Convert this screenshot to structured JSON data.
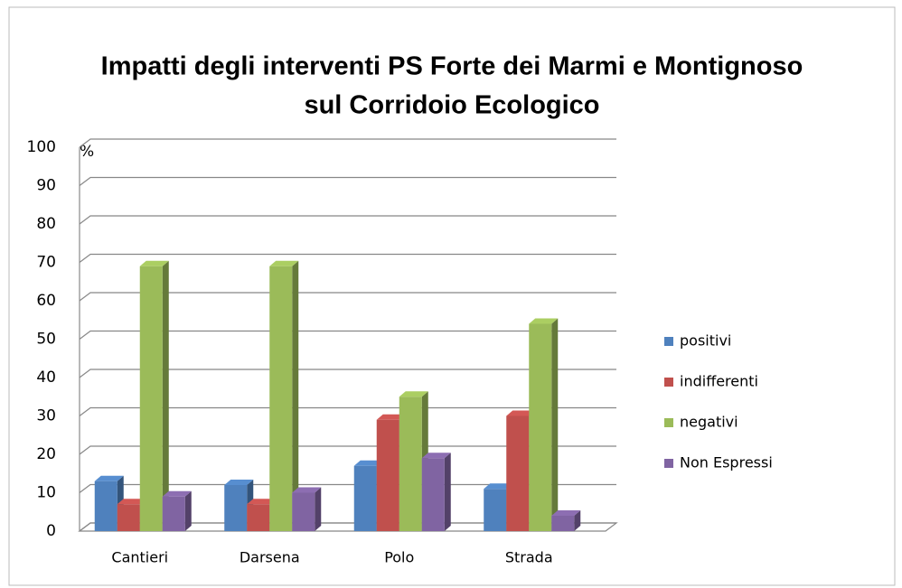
{
  "chart_data": {
    "type": "bar3d",
    "title": [
      "Impatti degli interventi PS Forte dei Marmi e Montignoso",
      "sul Corridoio Ecologico"
    ],
    "y_label": "%",
    "categories": [
      "Cantieri",
      "Darsena",
      "Polo",
      "Strada"
    ],
    "series": [
      {
        "name": "positivi",
        "color": "#4f81bd",
        "values": [
          13,
          12,
          17,
          11
        ]
      },
      {
        "name": "indifferenti",
        "color": "#c0504d",
        "values": [
          7,
          7,
          29,
          30
        ]
      },
      {
        "name": "negativi",
        "color": "#9bbb59",
        "values": [
          69,
          69,
          35,
          54
        ]
      },
      {
        "name": "Non Espressi",
        "color": "#8064a2",
        "values": [
          9,
          10,
          19,
          4
        ]
      }
    ],
    "ylim": [
      0,
      100
    ],
    "yticks": [
      0,
      10,
      20,
      30,
      40,
      50,
      60,
      70,
      80,
      90,
      100
    ],
    "grid": true,
    "legend": "right"
  }
}
